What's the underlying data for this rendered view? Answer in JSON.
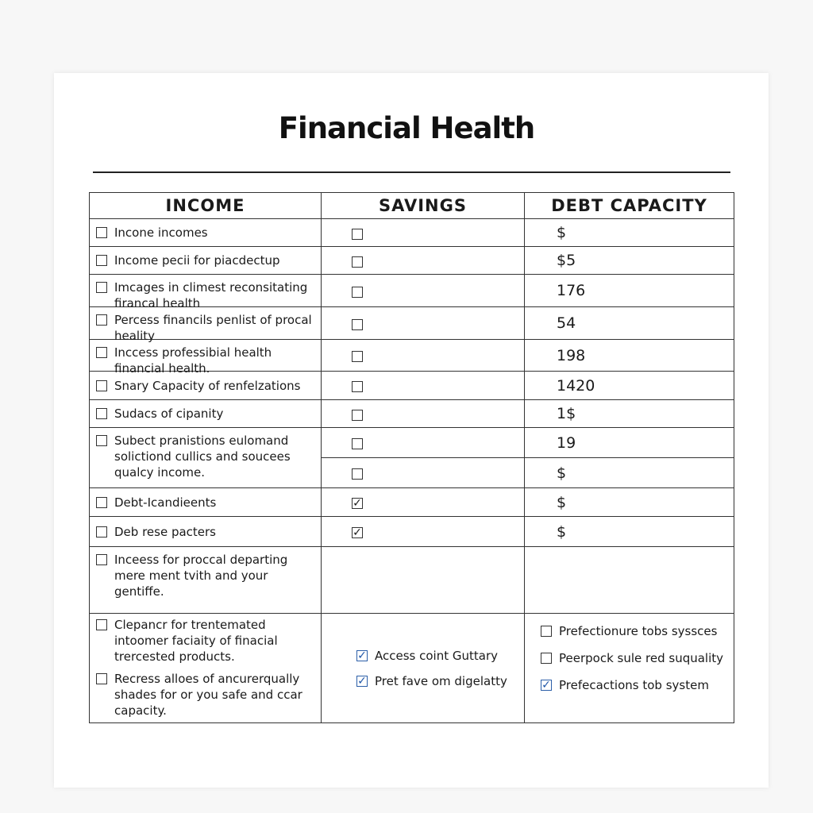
{
  "title": "Financial Health",
  "headers": {
    "income": "INCOME",
    "savings": "SAVINGS",
    "debt": "DEBT CAPACITY"
  },
  "rows": [
    {
      "income": "Incone incomes",
      "savings_checked": false,
      "debt": "$"
    },
    {
      "income": "Income pecii for piacdectup",
      "savings_checked": false,
      "debt": "$5"
    },
    {
      "income": "Imcages in climest reconsitating firancal health",
      "savings_checked": false,
      "debt": "176"
    },
    {
      "income": "Percess financils penlist of procal heality",
      "savings_checked": false,
      "debt": "54"
    },
    {
      "income": "Inccess professibial health financial health.",
      "savings_checked": false,
      "debt": "198"
    },
    {
      "income": "Snary Capacity of renfelzations",
      "savings_checked": false,
      "debt": "1420"
    },
    {
      "income": "Sudacs of cipanity",
      "savings_checked": false,
      "debt": "1$"
    },
    {
      "income": "Subect pranistions eulomand solictiond cullics and soucees qualcy income.",
      "savings_checked": false,
      "debt": "19",
      "extra_savings_checked": false,
      "extra_debt": "$"
    },
    {
      "income": "Debt-Icandieents",
      "savings_checked": true,
      "debt": "$"
    },
    {
      "income": "Deb rese pacters",
      "savings_checked": true,
      "debt": "$"
    },
    {
      "income": "Inceess for proccal departing mere ment tvith and your gentiffe."
    }
  ],
  "footer": {
    "income": [
      {
        "label": "Clepancr for trentemated intoomer faciaity of finacial trercested products.",
        "checked": false
      },
      {
        "label": "Recress alloes of ancurerqually shades for or you safe and ccar capacity.",
        "checked": false
      }
    ],
    "savings": [
      {
        "label": "Access coint Guttary",
        "checked": true
      },
      {
        "label": "Pret fave om digelatty",
        "checked": true
      }
    ],
    "debt": [
      {
        "label": "Prefectionure tobs syssces",
        "checked": false
      },
      {
        "label": "Peerpock sule red suquality",
        "checked": false
      },
      {
        "label": "Prefecactions tob system",
        "checked": true
      }
    ]
  },
  "colors": {
    "check_blue": "#1f56a8",
    "line": "#333333"
  }
}
